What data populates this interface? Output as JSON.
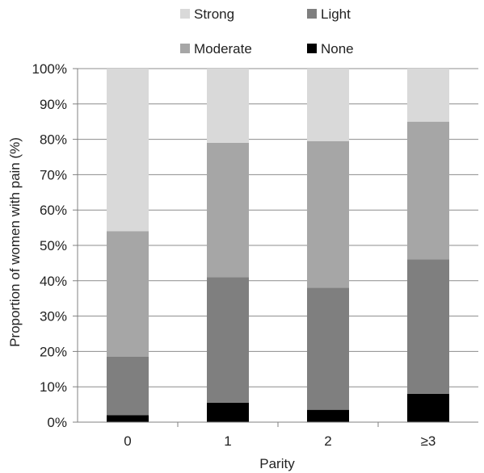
{
  "chart_data": {
    "type": "bar",
    "stacked": true,
    "xlabel": "Parity",
    "ylabel": "Proportion of women with pain (%)",
    "ylim": [
      0,
      100
    ],
    "categories": [
      "0",
      "1",
      "2",
      "≥3"
    ],
    "yticks": [
      "0%",
      "10%",
      "20%",
      "30%",
      "40%",
      "50%",
      "60%",
      "70%",
      "80%",
      "90%",
      "100%"
    ],
    "grid": true,
    "legend_position": "top",
    "series": [
      {
        "name": "None",
        "color": "#000000",
        "values": [
          2,
          5.5,
          3.5,
          8
        ]
      },
      {
        "name": "Light",
        "color": "#7f7f7f",
        "values": [
          16.5,
          35.5,
          34.5,
          38
        ]
      },
      {
        "name": "Moderate",
        "color": "#a6a6a6",
        "values": [
          35.5,
          38,
          41.5,
          39
        ]
      },
      {
        "name": "Strong",
        "color": "#d9d9d9",
        "values": [
          46,
          21,
          20.5,
          15
        ]
      }
    ],
    "legend_order": [
      "Strong",
      "Light",
      "Moderate",
      "None"
    ]
  }
}
